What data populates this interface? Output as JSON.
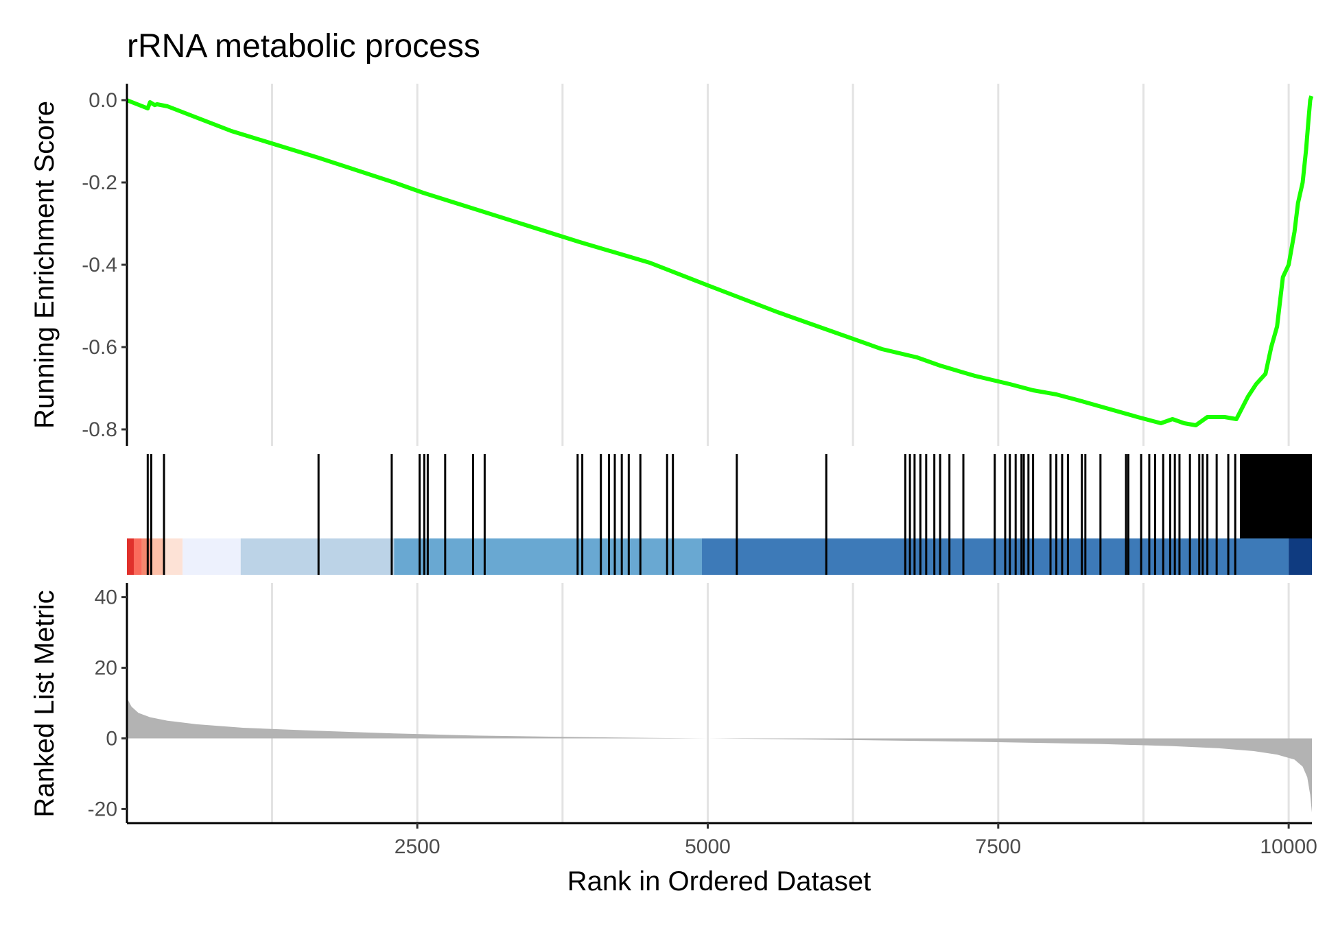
{
  "chart_data": {
    "type": "line",
    "title": "rRNA metabolic process",
    "xlabel": "Rank in Ordered Dataset",
    "xlim": [
      1,
      10200
    ],
    "x_ticks": [
      "2500",
      "5000",
      "7500",
      "10000"
    ],
    "panels": {
      "enrichment": {
        "ylabel": "Running Enrichment Score",
        "ylim": [
          -0.84,
          0.04
        ],
        "y_ticks": [
          "0.0",
          "-0.2",
          "-0.4",
          "-0.6",
          "-0.8"
        ],
        "line_color": "#1aff00",
        "x": [
          0,
          180,
          200,
          240,
          260,
          350,
          900,
          1650,
          2300,
          2550,
          3000,
          3900,
          4500,
          5000,
          5600,
          6000,
          6500,
          6800,
          7000,
          7300,
          7600,
          7800,
          8000,
          8200,
          8450,
          8700,
          8900,
          9000,
          9100,
          9200,
          9300,
          9450,
          9550,
          9650,
          9720,
          9800,
          9850,
          9900,
          9950,
          10000,
          10050,
          10080,
          10120,
          10150,
          10170,
          10185,
          10195
        ],
        "y": [
          0.0,
          -0.02,
          -0.005,
          -0.012,
          -0.01,
          -0.015,
          -0.075,
          -0.14,
          -0.2,
          -0.225,
          -0.265,
          -0.345,
          -0.395,
          -0.45,
          -0.515,
          -0.555,
          -0.605,
          -0.625,
          -0.645,
          -0.67,
          -0.69,
          -0.705,
          -0.715,
          -0.73,
          -0.75,
          -0.77,
          -0.785,
          -0.775,
          -0.785,
          -0.79,
          -0.77,
          -0.77,
          -0.775,
          -0.72,
          -0.69,
          -0.665,
          -0.6,
          -0.55,
          -0.43,
          -0.4,
          -0.32,
          -0.25,
          -0.2,
          -0.12,
          -0.05,
          0.0,
          0.01
        ]
      },
      "hits": {
        "hit_color": "#000000",
        "positions": [
          180,
          210,
          320,
          1650,
          2280,
          2520,
          2560,
          2590,
          2740,
          2980,
          3080,
          3880,
          3920,
          4080,
          4150,
          4200,
          4260,
          4320,
          4420,
          4650,
          4700,
          5250,
          6020,
          6700,
          6740,
          6780,
          6830,
          6880,
          6950,
          7000,
          7080,
          7200,
          7470,
          7560,
          7600,
          7650,
          7700,
          7720,
          7760,
          7800,
          7950,
          8000,
          8050,
          8100,
          8220,
          8250,
          8380,
          8600,
          8620,
          8730,
          8800,
          8850,
          8920,
          8980,
          9020,
          9060,
          9150,
          9230,
          9260,
          9300,
          9380,
          9480,
          9540
        ],
        "dense_block": [
          9580,
          10200
        ],
        "gradient_bands": [
          {
            "from": 1,
            "to": 60,
            "color": "#e0302b"
          },
          {
            "from": 60,
            "to": 130,
            "color": "#fa6b5c"
          },
          {
            "from": 130,
            "to": 200,
            "color": "#f4876f"
          },
          {
            "from": 200,
            "to": 320,
            "color": "#fcbfa8"
          },
          {
            "from": 320,
            "to": 480,
            "color": "#fde2d6"
          },
          {
            "from": 480,
            "to": 980,
            "color": "#edf1fd"
          },
          {
            "from": 980,
            "to": 2300,
            "color": "#bcd3e7"
          },
          {
            "from": 2300,
            "to": 4950,
            "color": "#69a8d2"
          },
          {
            "from": 4950,
            "to": 10000,
            "color": "#3d7ab8"
          },
          {
            "from": 10000,
            "to": 10200,
            "color": "#0f3b80"
          }
        ]
      },
      "ranked_metric": {
        "ylabel": "Ranked List Metric",
        "ylim": [
          -24,
          44
        ],
        "y_ticks": [
          "40",
          "20",
          "0",
          "-20"
        ],
        "fill_color": "#b3b3b3",
        "x": [
          0,
          40,
          100,
          200,
          350,
          600,
          1000,
          1600,
          2300,
          3000,
          3800,
          4500,
          5000,
          5600,
          6300,
          7000,
          7700,
          8400,
          9000,
          9400,
          9700,
          9900,
          10050,
          10120,
          10160,
          10185,
          10200
        ],
        "y": [
          11.5,
          9,
          7.2,
          6,
          5,
          4,
          3,
          2.2,
          1.4,
          0.8,
          0.4,
          0.15,
          0.0,
          -0.2,
          -0.5,
          -0.8,
          -1.2,
          -1.6,
          -2.2,
          -2.8,
          -3.6,
          -4.6,
          -6,
          -8,
          -11,
          -16,
          -21
        ]
      }
    }
  }
}
